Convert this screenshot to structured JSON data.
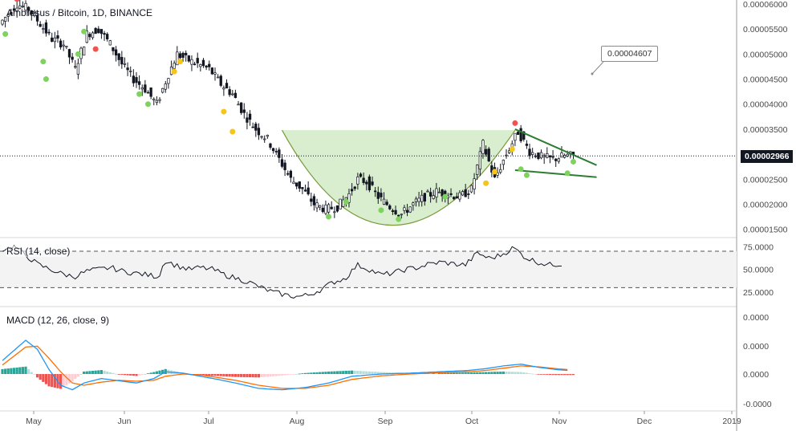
{
  "chart_title": "Ambrosus / Bitcoin, 1D, BINANCE",
  "rsi_label": "RSI (14, close)",
  "macd_label": "MACD (12, 26, close, 9)",
  "callout_value": "0.00004607",
  "last_price": "0.00002966",
  "colors": {
    "up": "#ffffff",
    "down": "#131722",
    "cup_fill": "#b9e0a5",
    "cup_line": "#7a9a3a",
    "wedge": "#2e7d32",
    "macd": "#2196f3",
    "signal": "#ff6d00",
    "hist_up": "#26a69a",
    "hist_up_light": "#b2dfdb",
    "hist_down": "#ef5350",
    "hist_down_light": "#ffcdd2",
    "dot_green": "#7ed35f",
    "dot_yellow": "#f5c518",
    "dot_red": "#ef5350"
  },
  "chart_data": {
    "type": "candlestick",
    "x_ticks": [
      "May",
      "Jun",
      "Jul",
      "Aug",
      "Sep",
      "Oct",
      "Nov",
      "Dec",
      "2019"
    ],
    "price_ticks": [
      "0.00006000",
      "0.00005500",
      "0.00005000",
      "0.00004500",
      "0.00004000",
      "0.00003500",
      "0.00003000",
      "0.00002500",
      "0.00002000",
      "0.00001500"
    ],
    "price_range": [
      1.35e-05,
      6.08e-05
    ],
    "rsi_ticks": [
      "75.0000",
      "50.0000",
      "25.0000"
    ],
    "rsi_range": [
      10,
      85
    ],
    "rsi_bands": [
      70,
      30
    ],
    "macd_ticks": [
      "0.0000",
      "0.0000",
      "0.0000",
      "-0.0000"
    ],
    "price_keypoints": [
      [
        0,
        5.6e-05
      ],
      [
        6,
        6e-05
      ],
      [
        10,
        5.9e-05
      ],
      [
        14,
        5.6e-05
      ],
      [
        18,
        5.3e-05
      ],
      [
        22,
        5.2e-05
      ],
      [
        26,
        4.7e-05
      ],
      [
        30,
        5.4e-05
      ],
      [
        34,
        5.5e-05
      ],
      [
        38,
        5.2e-05
      ],
      [
        42,
        4.8e-05
      ],
      [
        46,
        4.5e-05
      ],
      [
        50,
        4.3e-05
      ],
      [
        54,
        4e-05
      ],
      [
        58,
        4.6e-05
      ],
      [
        61,
        5e-05
      ],
      [
        64,
        4.9e-05
      ],
      [
        68,
        4.8e-05
      ],
      [
        72,
        4.7e-05
      ],
      [
        76,
        4.4e-05
      ],
      [
        80,
        4.2e-05
      ],
      [
        84,
        3.8e-05
      ],
      [
        88,
        3.5e-05
      ],
      [
        92,
        3.3e-05
      ],
      [
        96,
        2.9e-05
      ],
      [
        100,
        2.5e-05
      ],
      [
        104,
        2.3e-05
      ],
      [
        108,
        2e-05
      ],
      [
        112,
        1.9e-05
      ],
      [
        116,
        1.95e-05
      ],
      [
        120,
        2.2e-05
      ],
      [
        123,
        2.5e-05
      ],
      [
        126,
        2.45e-05
      ],
      [
        130,
        2.15e-05
      ],
      [
        134,
        1.95e-05
      ],
      [
        138,
        1.8e-05
      ],
      [
        142,
        2e-05
      ],
      [
        146,
        2.15e-05
      ],
      [
        150,
        2.25e-05
      ],
      [
        154,
        2.2e-05
      ],
      [
        158,
        2.15e-05
      ],
      [
        162,
        2.3e-05
      ],
      [
        166,
        3.2e-05
      ],
      [
        170,
        2.5e-05
      ],
      [
        174,
        3e-05
      ],
      [
        178,
        3.45e-05
      ],
      [
        182,
        3.05e-05
      ],
      [
        186,
        2.95e-05
      ],
      [
        190,
        2.9e-05
      ],
      [
        194,
        2.97e-05
      ]
    ],
    "rsi_keypoints": [
      [
        0,
        72
      ],
      [
        4,
        75
      ],
      [
        8,
        65
      ],
      [
        12,
        55
      ],
      [
        16,
        50
      ],
      [
        20,
        45
      ],
      [
        24,
        42
      ],
      [
        28,
        48
      ],
      [
        32,
        50
      ],
      [
        36,
        52
      ],
      [
        40,
        48
      ],
      [
        44,
        46
      ],
      [
        48,
        44
      ],
      [
        52,
        42
      ],
      [
        54,
        60
      ],
      [
        58,
        54
      ],
      [
        62,
        50
      ],
      [
        66,
        52
      ],
      [
        70,
        50
      ],
      [
        74,
        44
      ],
      [
        78,
        40
      ],
      [
        82,
        36
      ],
      [
        86,
        30
      ],
      [
        90,
        25
      ],
      [
        94,
        22
      ],
      [
        98,
        20
      ],
      [
        102,
        22
      ],
      [
        106,
        28
      ],
      [
        110,
        36
      ],
      [
        114,
        40
      ],
      [
        118,
        55
      ],
      [
        122,
        50
      ],
      [
        126,
        44
      ],
      [
        130,
        46
      ],
      [
        134,
        50
      ],
      [
        138,
        52
      ],
      [
        142,
        56
      ],
      [
        146,
        58
      ],
      [
        150,
        56
      ],
      [
        154,
        55
      ],
      [
        158,
        68
      ],
      [
        162,
        62
      ],
      [
        166,
        66
      ],
      [
        170,
        74
      ],
      [
        174,
        63
      ],
      [
        178,
        58
      ],
      [
        182,
        55
      ],
      [
        186,
        56
      ]
    ],
    "macd_keypoints": [
      [
        0,
        0.3
      ],
      [
        8,
        0.75
      ],
      [
        12,
        0.55
      ],
      [
        16,
        0.1
      ],
      [
        20,
        -0.25
      ],
      [
        24,
        -0.35
      ],
      [
        28,
        -0.2
      ],
      [
        34,
        -0.1
      ],
      [
        40,
        -0.15
      ],
      [
        46,
        -0.2
      ],
      [
        52,
        -0.1
      ],
      [
        56,
        0.05
      ],
      [
        62,
        0.02
      ],
      [
        68,
        -0.05
      ],
      [
        74,
        -0.12
      ],
      [
        80,
        -0.2
      ],
      [
        88,
        -0.32
      ],
      [
        96,
        -0.35
      ],
      [
        104,
        -0.3
      ],
      [
        112,
        -0.2
      ],
      [
        120,
        -0.05
      ],
      [
        130,
        0.0
      ],
      [
        140,
        0.02
      ],
      [
        150,
        0.05
      ],
      [
        160,
        0.08
      ],
      [
        166,
        0.12
      ],
      [
        172,
        0.18
      ],
      [
        178,
        0.22
      ],
      [
        184,
        0.15
      ],
      [
        190,
        0.1
      ],
      [
        194,
        0.08
      ]
    ],
    "signal_keypoints": [
      [
        0,
        0.2
      ],
      [
        8,
        0.6
      ],
      [
        12,
        0.62
      ],
      [
        16,
        0.35
      ],
      [
        20,
        0.05
      ],
      [
        24,
        -0.2
      ],
      [
        28,
        -0.25
      ],
      [
        34,
        -0.18
      ],
      [
        40,
        -0.14
      ],
      [
        46,
        -0.16
      ],
      [
        52,
        -0.14
      ],
      [
        56,
        -0.05
      ],
      [
        62,
        0.0
      ],
      [
        68,
        -0.02
      ],
      [
        74,
        -0.08
      ],
      [
        80,
        -0.14
      ],
      [
        88,
        -0.25
      ],
      [
        96,
        -0.32
      ],
      [
        104,
        -0.32
      ],
      [
        112,
        -0.25
      ],
      [
        120,
        -0.12
      ],
      [
        130,
        -0.04
      ],
      [
        140,
        0.0
      ],
      [
        150,
        0.03
      ],
      [
        160,
        0.05
      ],
      [
        166,
        0.08
      ],
      [
        172,
        0.13
      ],
      [
        178,
        0.18
      ],
      [
        184,
        0.16
      ],
      [
        190,
        0.12
      ],
      [
        194,
        0.1
      ]
    ],
    "pattern_cup": {
      "start": [
        96,
        3.48e-05
      ],
      "end": [
        176,
        3.48e-05
      ],
      "bottom": [
        132,
        1.58e-05
      ]
    },
    "pattern_wedge": {
      "top": [
        [
          176,
          3.5e-05
        ],
        [
          204,
          2.78e-05
        ]
      ],
      "bottom": [
        [
          176,
          2.68e-05
        ],
        [
          204,
          2.54e-05
        ]
      ]
    },
    "signal_dots": [
      {
        "bar": 1,
        "price": 5.4e-05,
        "color": "green"
      },
      {
        "bar": 5,
        "price": 6.1e-05,
        "color": "red"
      },
      {
        "bar": 14,
        "price": 4.85e-05,
        "color": "green"
      },
      {
        "bar": 15,
        "price": 4.5e-05,
        "color": "green"
      },
      {
        "bar": 26,
        "price": 5e-05,
        "color": "green"
      },
      {
        "bar": 28,
        "price": 5.45e-05,
        "color": "green"
      },
      {
        "bar": 32,
        "price": 5.1e-05,
        "color": "red"
      },
      {
        "bar": 47,
        "price": 4.2e-05,
        "color": "green"
      },
      {
        "bar": 50,
        "price": 4e-05,
        "color": "green"
      },
      {
        "bar": 59,
        "price": 4.65e-05,
        "color": "yellow"
      },
      {
        "bar": 61,
        "price": 4.85e-05,
        "color": "yellow"
      },
      {
        "bar": 76,
        "price": 3.85e-05,
        "color": "yellow"
      },
      {
        "bar": 79,
        "price": 3.45e-05,
        "color": "yellow"
      },
      {
        "bar": 112,
        "price": 1.75e-05,
        "color": "green"
      },
      {
        "bar": 118,
        "price": 2.05e-05,
        "color": "green"
      },
      {
        "bar": 130,
        "price": 1.88e-05,
        "color": "green"
      },
      {
        "bar": 136,
        "price": 1.7e-05,
        "color": "green"
      },
      {
        "bar": 152,
        "price": 2.15e-05,
        "color": "green"
      },
      {
        "bar": 166,
        "price": 2.42e-05,
        "color": "yellow"
      },
      {
        "bar": 169,
        "price": 2.65e-05,
        "color": "yellow"
      },
      {
        "bar": 175,
        "price": 3.1e-05,
        "color": "yellow"
      },
      {
        "bar": 176,
        "price": 3.62e-05,
        "color": "red"
      },
      {
        "bar": 178,
        "price": 2.7e-05,
        "color": "green"
      },
      {
        "bar": 180,
        "price": 2.58e-05,
        "color": "green"
      },
      {
        "bar": 194,
        "price": 2.62e-05,
        "color": "green"
      },
      {
        "bar": 196,
        "price": 2.85e-05,
        "color": "green"
      }
    ]
  }
}
